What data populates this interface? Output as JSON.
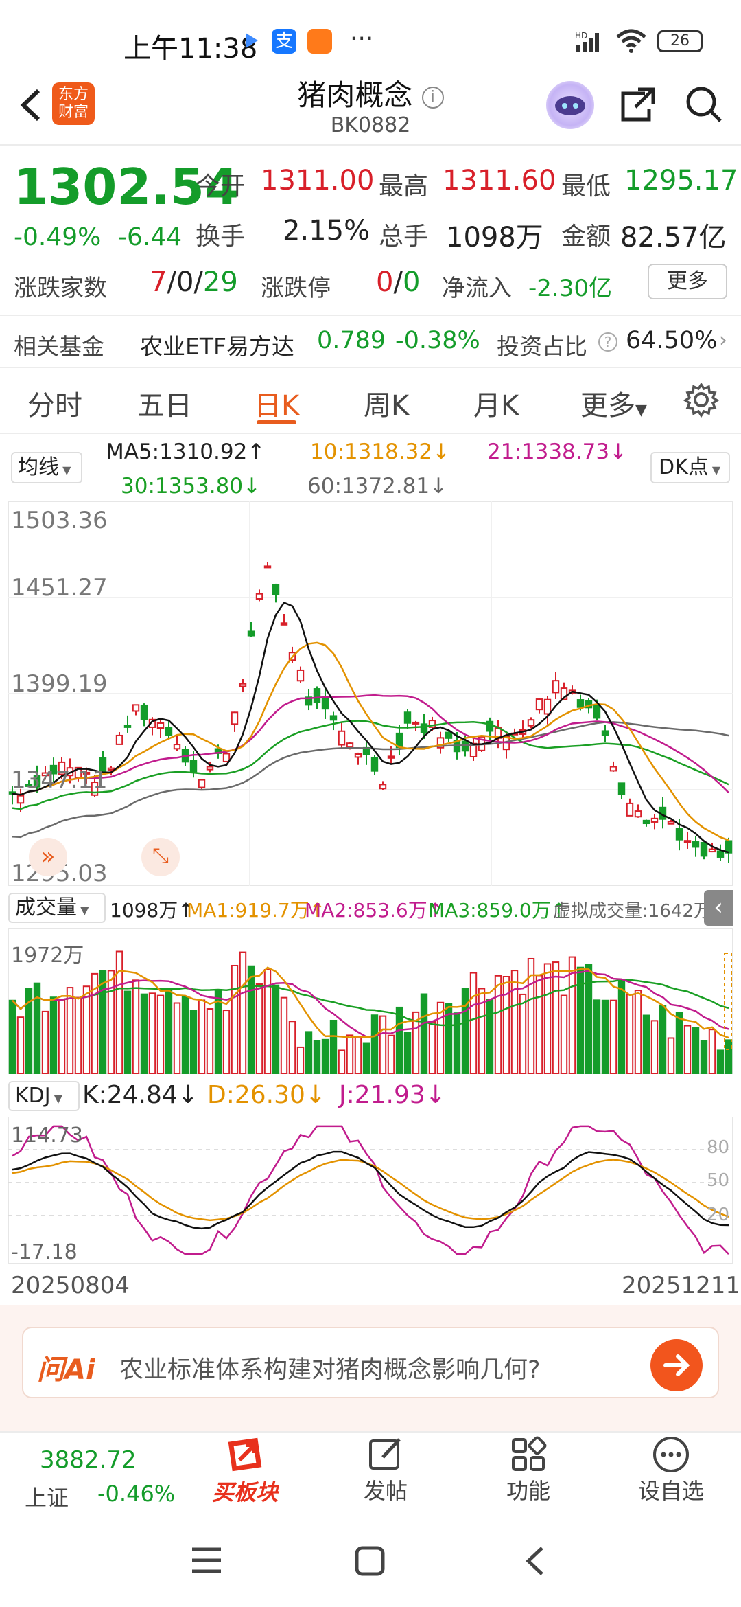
{
  "status_bar": {
    "time": "上午11:38",
    "battery": "26"
  },
  "header": {
    "title": "猪肉概念",
    "code": "BK0882",
    "logo_text_1": "东方",
    "logo_text_2": "财富"
  },
  "quote": {
    "price": "1302.54",
    "change_pct": "-0.49%",
    "change": "-6.44",
    "open_label": "今开",
    "open": "1311.00",
    "high_label": "最高",
    "high": "1311.60",
    "low_label": "最低",
    "low": "1295.17",
    "turnover_label": "换手",
    "turnover": "2.15%",
    "volume_label": "总手",
    "volume": "1098万",
    "amount_label": "金额",
    "amount": "82.57亿",
    "updown_label": "涨跌家数",
    "up": "7",
    "flat": "0",
    "down": "29",
    "limit_label": "涨跌停",
    "limit_up": "0",
    "limit_down": "0",
    "netflow_label": "净流入",
    "netflow": "-2.30亿",
    "more_label": "更多"
  },
  "fund": {
    "label": "相关基金",
    "name": "农业ETF易方达",
    "price": "0.789",
    "pct": "-0.38%",
    "ratio_label": "投资占比",
    "ratio": "64.50%"
  },
  "tabs": [
    "分时",
    "五日",
    "日K",
    "周K",
    "月K",
    "更多"
  ],
  "ma": {
    "selector": "均线",
    "ma5": "MA5:1310.92↑",
    "ma10": "10:1318.32↓",
    "ma21": "21:1338.73↓",
    "ma30": "30:1353.80↓",
    "ma60": "60:1372.81↓",
    "dk": "DK点"
  },
  "kline_axis": {
    "top": "1503.36",
    "l2": "1451.27",
    "l3": "1399.19",
    "l4": "1347.11",
    "bottom": "1295.03"
  },
  "volume": {
    "selector": "成交量",
    "vol": "1098万↑",
    "ma1": "MA1:919.7万↑",
    "ma2": "MA2:853.6万↑",
    "ma3": "MA3:859.0万↑",
    "virtual": "虚拟成交量:1642万",
    "max": "1972万"
  },
  "kdj": {
    "selector": "KDJ",
    "k": "K:24.84↓",
    "d": "D:26.30↓",
    "j": "J:21.93↓",
    "top": "114.73",
    "bottom": "-17.18",
    "l80": "80",
    "l50": "50",
    "l20": "20"
  },
  "dates": {
    "start": "20250804",
    "end": "20251211"
  },
  "ai": {
    "logo": "问Ai",
    "question": "农业标准体系构建对猪肉概念影响几何?"
  },
  "bottom_nav": {
    "index_value": "3882.72",
    "index_name": "上证",
    "index_pct": "-0.46%",
    "buy_label": "买板块",
    "post_label": "发帖",
    "func_label": "功能",
    "watch_label": "设自选"
  },
  "colors": {
    "up": "#d8202a",
    "down": "#149c2a",
    "accent": "#e85c1e"
  }
}
